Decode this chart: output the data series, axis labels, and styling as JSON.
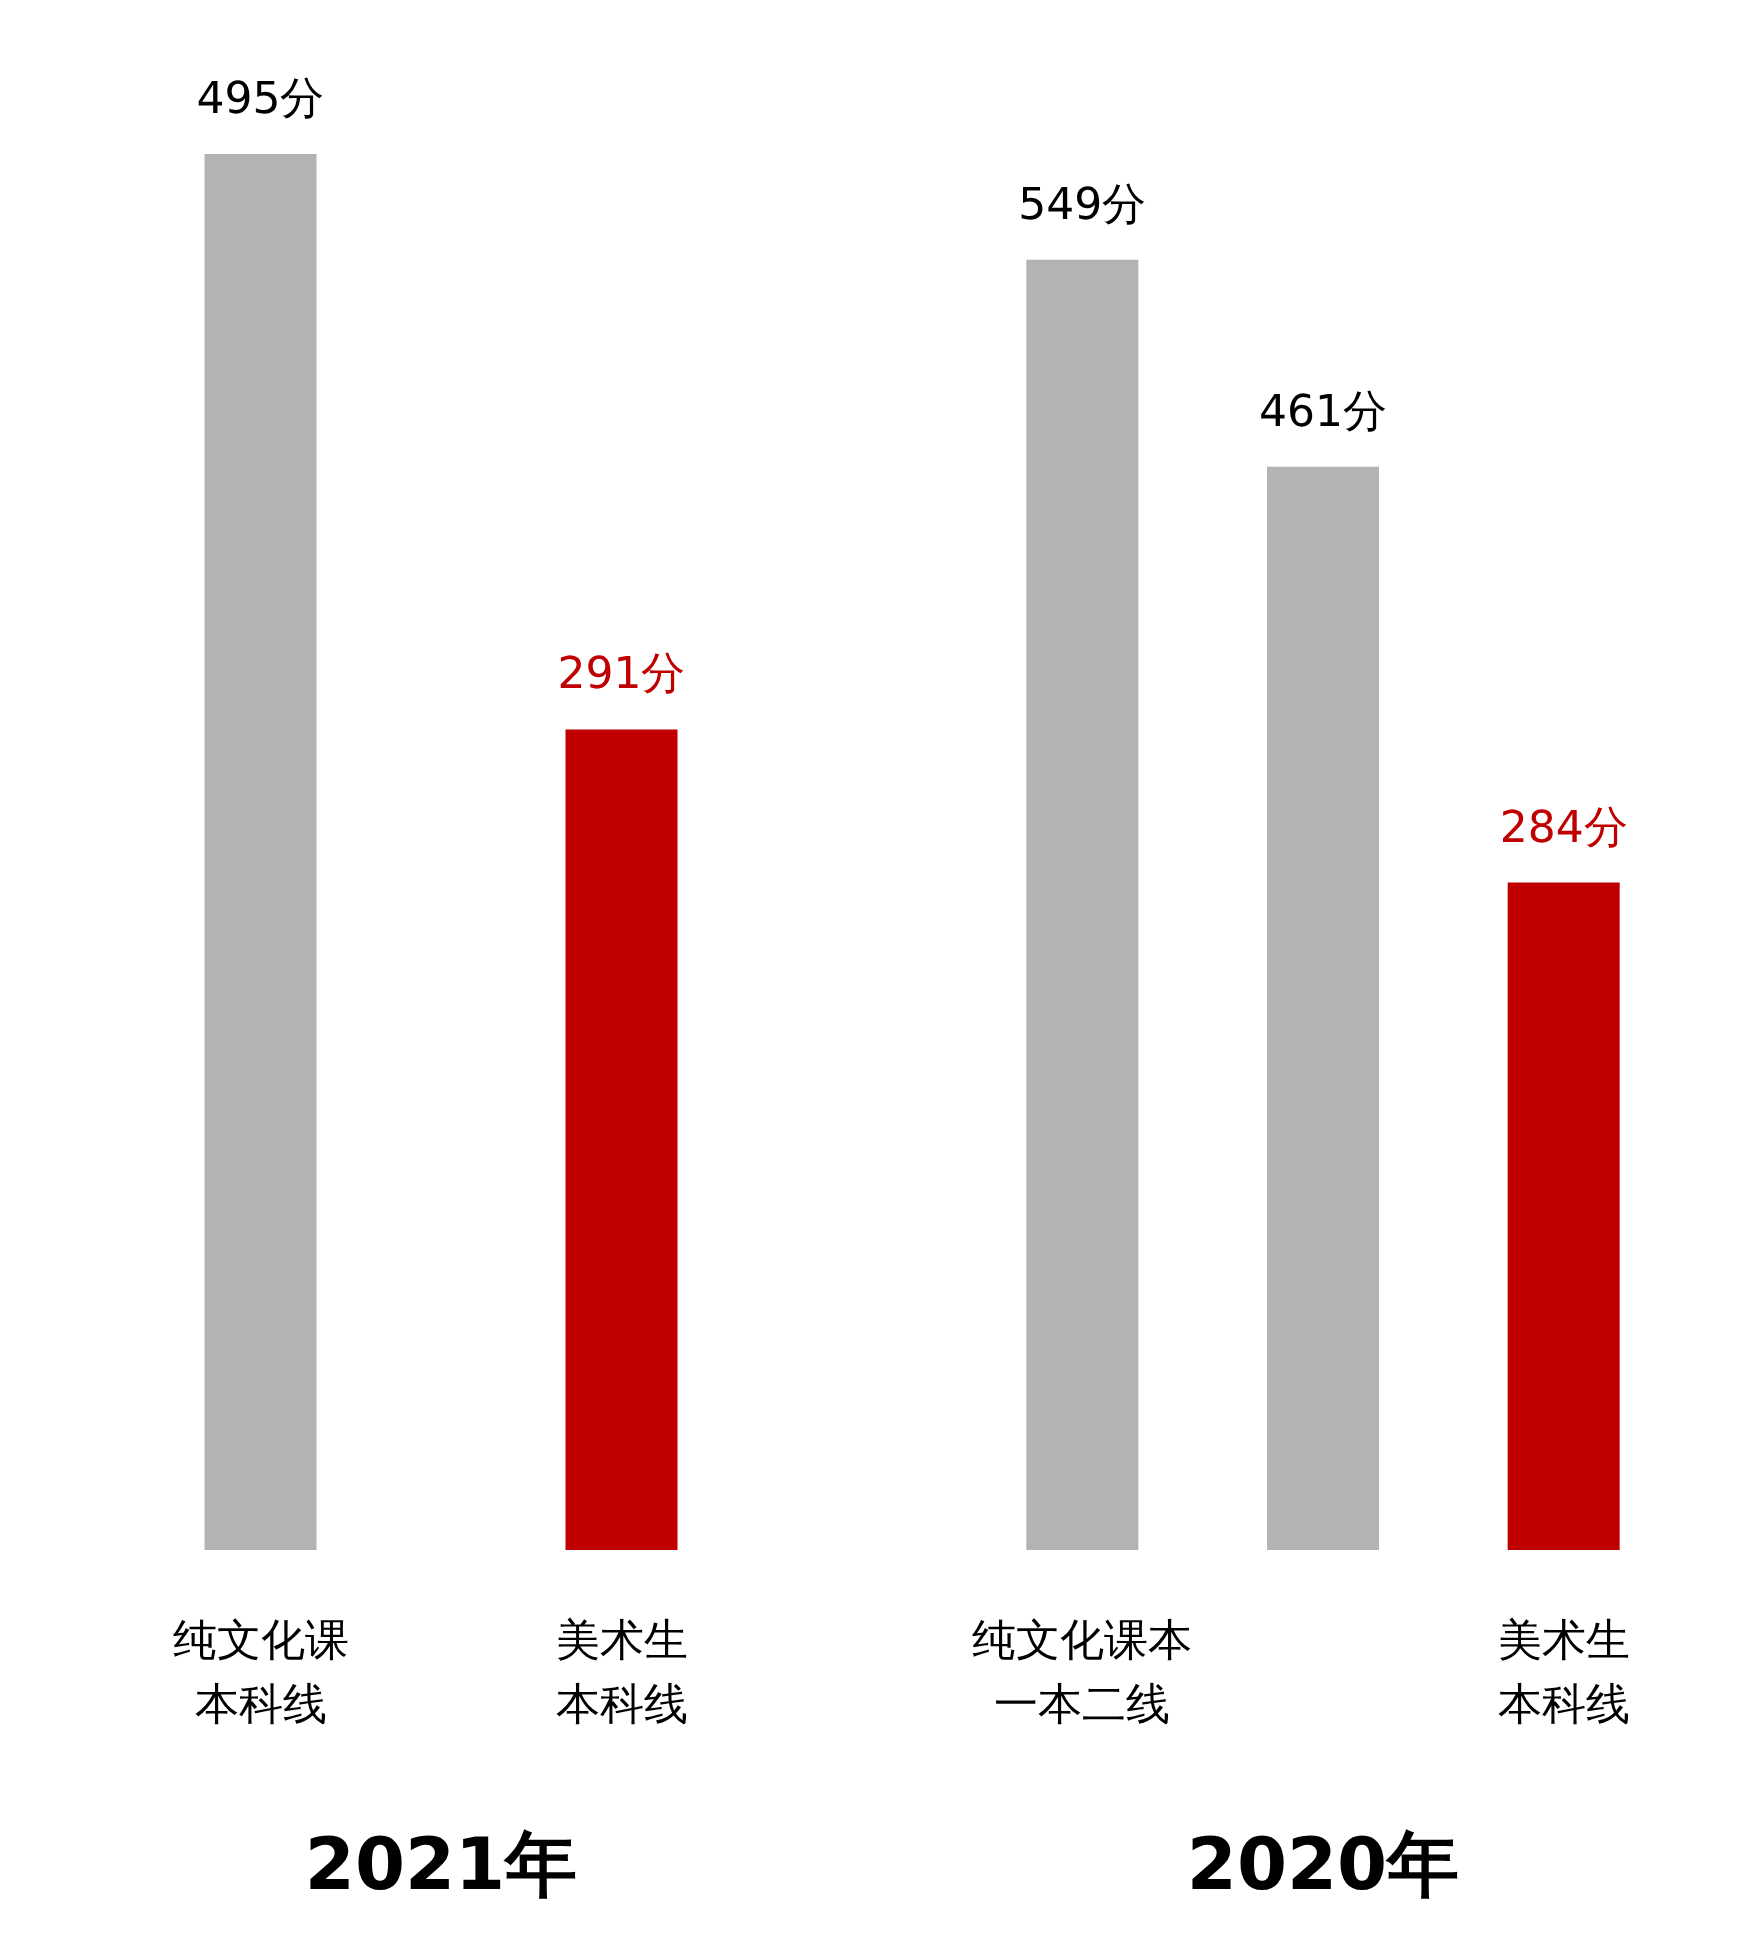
{
  "chart_data": [
    {
      "type": "bar",
      "xlabel": "2021年",
      "categories": [
        "纯文化课本科线",
        "美术生本科线"
      ],
      "values": [
        495,
        291
      ],
      "value_labels": [
        "495分",
        "291分"
      ],
      "colors": [
        "#b3b3b3",
        "#c00000"
      ]
    },
    {
      "type": "bar",
      "xlabel": "2020年",
      "categories": [
        "纯文化课本一本二线",
        null,
        "美术生本科线"
      ],
      "values": [
        549,
        461,
        284
      ],
      "value_labels": [
        "549分",
        "461分",
        "284分"
      ],
      "colors": [
        "#b3b3b3",
        "#b3b3b3",
        "#c00000"
      ]
    }
  ]
}
